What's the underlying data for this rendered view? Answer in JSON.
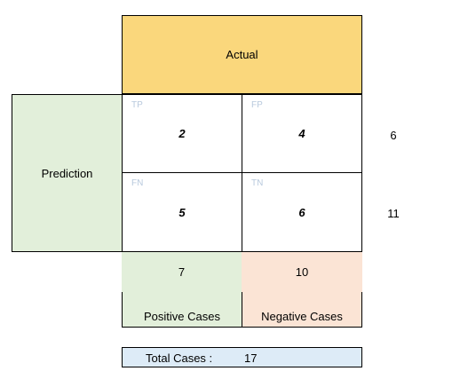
{
  "header": {
    "actual_label": "Actual"
  },
  "side": {
    "prediction_label": "Prediction"
  },
  "matrix": {
    "tp": {
      "code": "TP",
      "value": "2"
    },
    "fp": {
      "code": "FP",
      "value": "4"
    },
    "fn": {
      "code": "FN",
      "value": "5"
    },
    "tn": {
      "code": "TN",
      "value": "6"
    }
  },
  "row_totals": [
    "6",
    "11"
  ],
  "column_totals": {
    "positive": {
      "count": "7",
      "label": "Positive Cases"
    },
    "negative": {
      "count": "10",
      "label": "Negative Cases"
    }
  },
  "total": {
    "label": "Total Cases :",
    "value": "17"
  },
  "colors": {
    "actual": "#fad77c",
    "prediction": "#e2efda",
    "positive": "#e2efda",
    "negative": "#fbe4d5",
    "total": "#ddebf7",
    "cell_code": "#b8c9dd"
  }
}
